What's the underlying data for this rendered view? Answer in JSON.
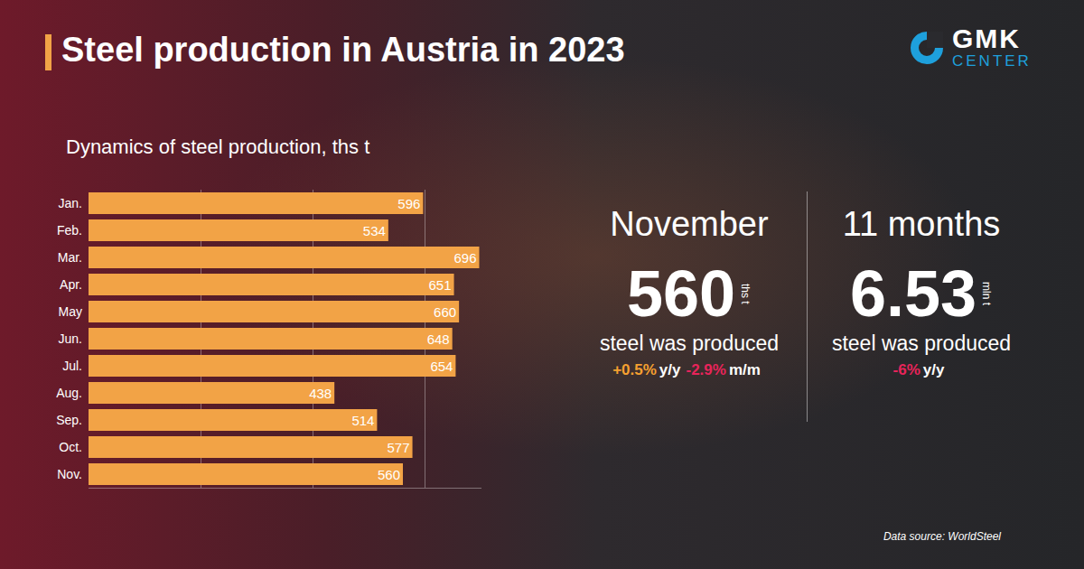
{
  "title": "Steel production in Austria in 2023",
  "logo": {
    "line1": "GMK",
    "line2": "CENTER"
  },
  "chart_data": {
    "type": "bar",
    "title": "Dynamics of steel production, ths t",
    "orientation": "horizontal",
    "categories": [
      "Jan.",
      "Feb.",
      "Mar.",
      "Apr.",
      "May",
      "Jun.",
      "Jul.",
      "Aug.",
      "Sep.",
      "Oct.",
      "Nov."
    ],
    "values": [
      596,
      534,
      696,
      651,
      660,
      648,
      654,
      438,
      514,
      577,
      560
    ],
    "color": "#f2a346",
    "xlim": [
      0,
      700
    ],
    "xticks": [
      0,
      200,
      400,
      600
    ],
    "grid": true,
    "data_labels": true,
    "tick_labels": "y"
  },
  "panels": [
    {
      "heading": "November",
      "value": 560,
      "unit": "ths t",
      "caption": "steel was produced",
      "changes": [
        {
          "value": 0.5,
          "label": "+0.5%",
          "period": "y/y"
        },
        {
          "value": -2.9,
          "label": "-2.9%",
          "period": "m/m"
        }
      ]
    },
    {
      "heading": "11 months",
      "value": 6.53,
      "unit": "mln t",
      "caption": "steel was produced",
      "changes": [
        {
          "value": -6,
          "label": "-6%",
          "period": "y/y"
        }
      ]
    }
  ],
  "source": "Data source: WorldSteel"
}
